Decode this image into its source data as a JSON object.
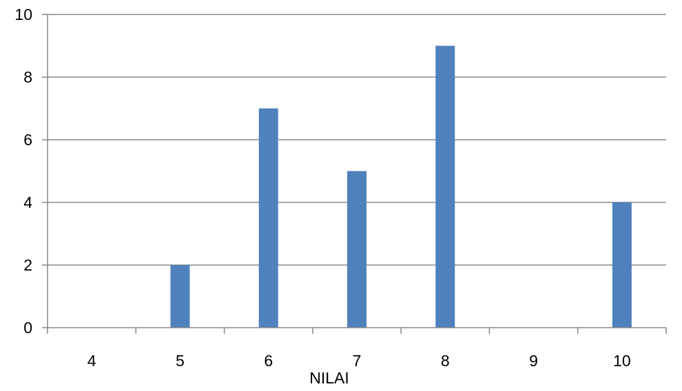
{
  "chart_data": {
    "type": "bar",
    "title": "",
    "xlabel": "NILAI",
    "ylabel": "",
    "categories": [
      "4",
      "5",
      "6",
      "7",
      "8",
      "9",
      "10"
    ],
    "series": [
      {
        "values": [
          0,
          2,
          7,
          5,
          9,
          0,
          4
        ],
        "color": "#4f81bd"
      }
    ],
    "ylim": [
      0,
      10
    ],
    "yticks": [
      0,
      2,
      4,
      6,
      8,
      10
    ],
    "grid": true,
    "legend": "none"
  }
}
